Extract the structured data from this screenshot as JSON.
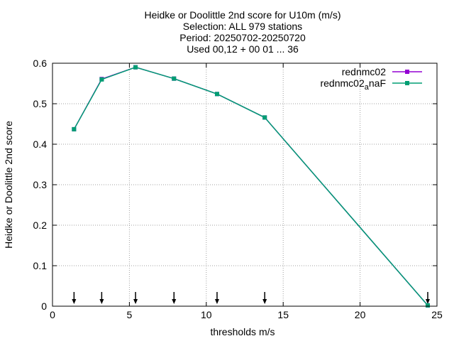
{
  "chart_data": {
    "type": "line",
    "title_lines": [
      "Heidke or Doolittle 2nd score  for U10m (m/s)",
      "Selection: ALL    979 stations",
      "Period: 20250702-20250720",
      "Used 00,12 + 00 01 ... 36"
    ],
    "xlabel": "thresholds m/s",
    "ylabel": "Heidke or Doolittle 2nd score",
    "xlim": [
      0,
      25
    ],
    "ylim": [
      0,
      0.6
    ],
    "xticks": [
      "0",
      "5",
      "10",
      "15",
      "20",
      "25"
    ],
    "yticks": [
      "0",
      "0.1",
      "0.2",
      "0.3",
      "0.4",
      "0.5",
      "0.6"
    ],
    "grid": true,
    "legend_position": "top-right",
    "x": [
      1.4,
      3.2,
      5.4,
      7.9,
      10.7,
      13.8,
      24.4
    ],
    "series": [
      {
        "name": "rednmc02",
        "color": "#9400d3",
        "values": [
          0.437,
          0.561,
          0.59,
          0.562,
          0.524,
          0.466,
          0.002
        ]
      },
      {
        "name_main": "rednmc02",
        "name_sub": "a",
        "name_tail": "naF",
        "color": "#009e73",
        "values": [
          0.437,
          0.56,
          0.59,
          0.562,
          0.524,
          0.466,
          0.002
        ]
      }
    ],
    "arrows_at_x": [
      1.4,
      3.2,
      5.4,
      7.9,
      10.7,
      13.8,
      24.4
    ]
  }
}
